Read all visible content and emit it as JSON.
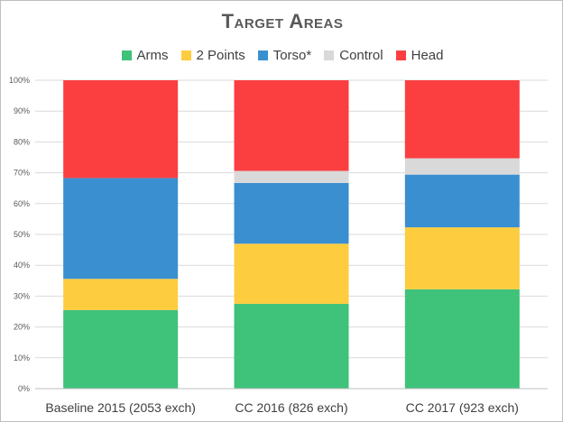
{
  "chart_data": {
    "type": "bar",
    "stacked": true,
    "title": "Target Areas",
    "categories": [
      "Baseline 2015 (2053 exch)",
      "CC 2016 (826 exch)",
      "CC 2017 (923 exch)"
    ],
    "series": [
      {
        "name": "Arms",
        "color": "#3fc27a",
        "values": [
          25.5,
          27.5,
          32.2
        ]
      },
      {
        "name": "2 Points",
        "color": "#fdcc3f",
        "values": [
          10.1,
          19.5,
          20.1
        ]
      },
      {
        "name": "Torso*",
        "color": "#3a8fd0",
        "values": [
          32.7,
          19.7,
          17.1
        ]
      },
      {
        "name": "Control",
        "color": "#d9d9d9",
        "values": [
          0.0,
          3.9,
          5.3
        ]
      },
      {
        "name": "Head",
        "color": "#fb3f40",
        "values": [
          31.7,
          29.4,
          25.3
        ]
      }
    ],
    "ylim": [
      0,
      100
    ],
    "yticks": [
      "0%",
      "10%",
      "20%",
      "30%",
      "40%",
      "50%",
      "60%",
      "70%",
      "80%",
      "90%",
      "100%"
    ],
    "grid": true,
    "legend": "top"
  }
}
